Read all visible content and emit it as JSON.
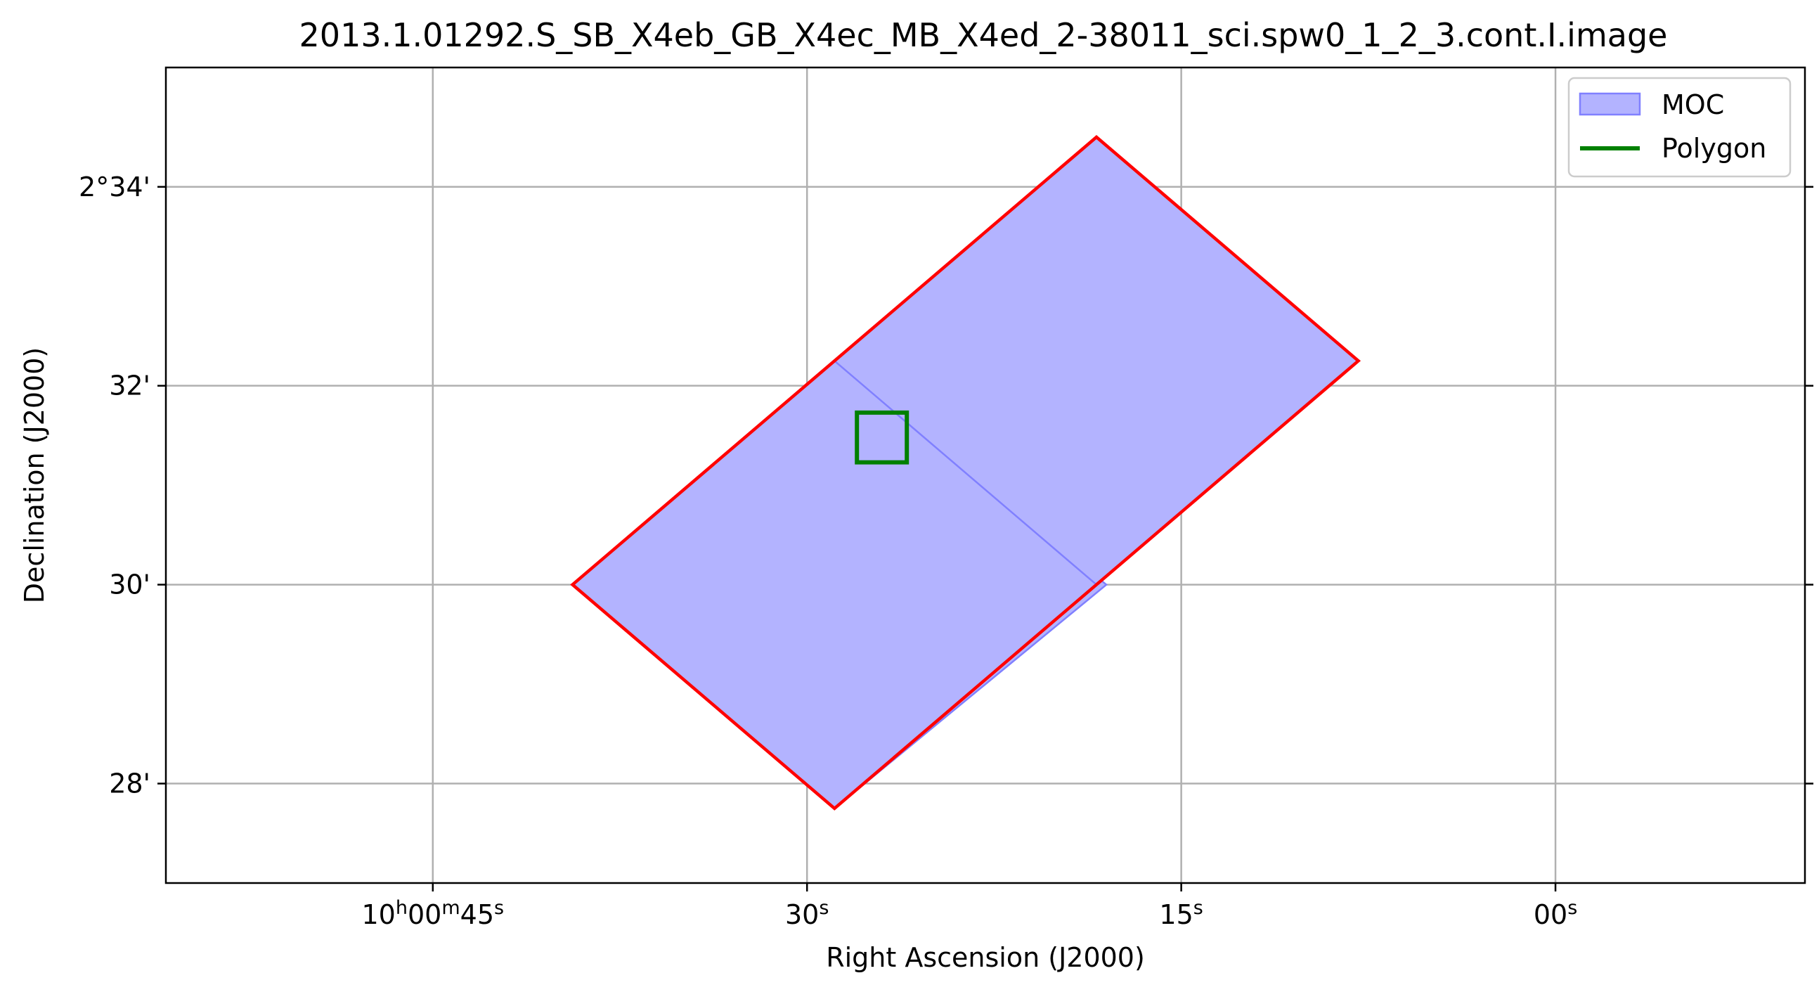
{
  "chart_data": {
    "type": "area",
    "title": "2013.1.01292.S_SB_X4eb_GB_X4ec_MB_X4ed_2-38011_sci.spw0_1_2_3.cont.I.image",
    "xlabel": "Right Ascension (J2000)",
    "ylabel": "Declination (J2000)",
    "x_unit": "seconds of RA after 10h00m00s",
    "y_unit": "arcminutes of Dec after 2°00'",
    "xlim": [
      55.7,
      -10.0
    ],
    "ylim": [
      27.0,
      35.2
    ],
    "x_ticks": [
      {
        "value": 45,
        "label": "10h00m45s"
      },
      {
        "value": 30,
        "label": "30s"
      },
      {
        "value": 15,
        "label": "15s"
      },
      {
        "value": 0,
        "label": "00s"
      }
    ],
    "y_ticks": [
      {
        "value": 34,
        "label": "2°34'"
      },
      {
        "value": 32,
        "label": "32'"
      },
      {
        "value": 30,
        "label": "30'"
      },
      {
        "value": 28,
        "label": "28'"
      }
    ],
    "grid": true,
    "legend": {
      "placement": "top-right",
      "entries": [
        {
          "label": "MOC",
          "kind": "patch"
        },
        {
          "label": "Polygon",
          "kind": "line"
        }
      ]
    },
    "series": [
      {
        "name": "MOC",
        "kind": "filled-polygon",
        "fill_color": "#b3b3ff",
        "edge_color": "#8080ff",
        "points": [
          [
            39.4,
            30.0
          ],
          [
            28.9,
            32.25
          ],
          [
            18.0,
            30.0
          ],
          [
            28.9,
            27.75
          ]
        ]
      },
      {
        "name": "MOC",
        "kind": "filled-polygon",
        "fill_color": "#b3b3ff",
        "edge_color": "#8080ff",
        "points": [
          [
            28.9,
            32.25
          ],
          [
            18.4,
            34.5
          ],
          [
            7.9,
            32.25
          ],
          [
            18.4,
            30.0
          ]
        ]
      },
      {
        "name": "MOC outline",
        "kind": "outline",
        "color": "#ff0000",
        "points": [
          [
            39.4,
            30.0
          ],
          [
            18.4,
            34.5
          ],
          [
            7.9,
            32.25
          ],
          [
            28.9,
            27.75
          ]
        ]
      },
      {
        "name": "Polygon",
        "kind": "outline",
        "color": "#008000",
        "points": [
          [
            28.0,
            31.23
          ],
          [
            28.0,
            31.73
          ],
          [
            26.0,
            31.73
          ],
          [
            26.0,
            31.23
          ]
        ]
      }
    ]
  }
}
